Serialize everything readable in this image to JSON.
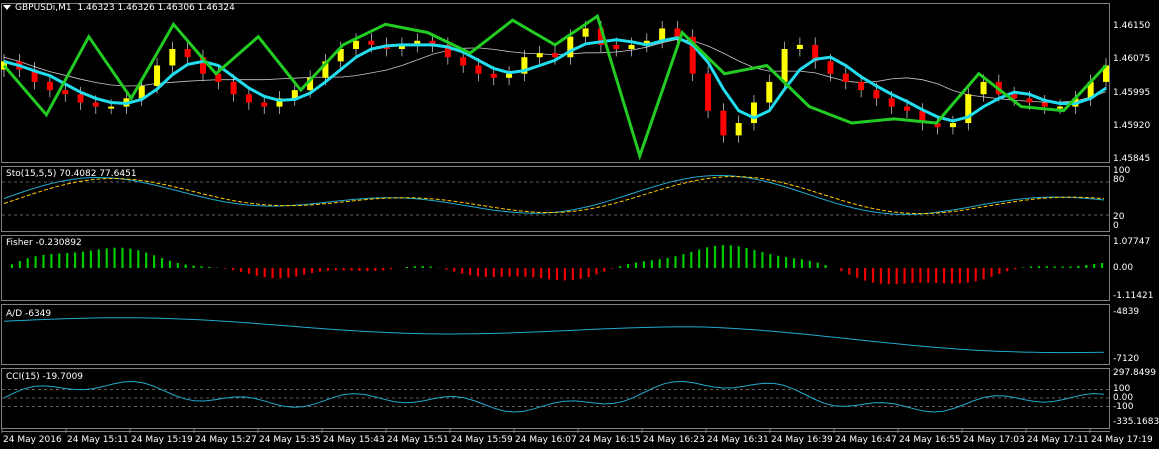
{
  "header": {
    "symbol": "GBPUSDi,M1",
    "ohlc": "1.46323 1.46326 1.46306 1.46324"
  },
  "colors": {
    "background": "#000000",
    "grid": "#808080",
    "bull_candle": "#ffff00",
    "bear_candle": "#ff0000",
    "zigzag": "#22cc22",
    "fast_ma": "#22ddee",
    "slow_ma": "#c8c8c8",
    "stoch_main": "#22aacc",
    "stoch_signal": "#ffcc00",
    "fisher_up": "#00cc00",
    "fisher_down": "#ee0000",
    "ad_line": "#22aacc",
    "cci_line": "#22aacc"
  },
  "chart_data": [
    {
      "type": "candlestick",
      "name": "price",
      "ylim": [
        1.45845,
        1.462
      ],
      "yticks": [
        "1.46150",
        "1.46075",
        "1.45995",
        "1.45920",
        "1.45845"
      ],
      "close": [
        1.4608,
        1.4606,
        1.4603,
        1.4601,
        1.46,
        1.4598,
        1.4597,
        1.4597,
        1.4599,
        1.4602,
        1.4607,
        1.4611,
        1.4609,
        1.4605,
        1.4603,
        1.46,
        1.4598,
        1.4597,
        1.4599,
        1.4601,
        1.4604,
        1.4608,
        1.4611,
        1.4613,
        1.4612,
        1.4611,
        1.4612,
        1.4613,
        1.4612,
        1.4609,
        1.4607,
        1.4605,
        1.4604,
        1.4605,
        1.4609,
        1.461,
        1.4609,
        1.4614,
        1.4616,
        1.4612,
        1.4611,
        1.4612,
        1.4613,
        1.4616,
        1.4614,
        1.4605,
        1.4596,
        1.459,
        1.4593,
        1.4598,
        1.4603,
        1.4611,
        1.4612,
        1.4608,
        1.4605,
        1.4603,
        1.4601,
        1.4599,
        1.4597,
        1.4596,
        1.4593,
        1.4592,
        1.4593,
        1.46,
        1.4603,
        1.46,
        1.4599,
        1.4598,
        1.4597,
        1.4597,
        1.4599,
        1.4603,
        1.4607
      ],
      "bars_up_down": "alternating derived from close",
      "zigzag": [
        1.4607,
        1.4595,
        1.4614,
        1.4599,
        1.4617,
        1.4605,
        1.4614,
        1.4601,
        1.4612,
        1.4617,
        1.4615,
        1.461,
        1.4618,
        1.4612,
        1.4619,
        1.4585,
        1.4615,
        1.4605,
        1.4607,
        1.4597,
        1.4593,
        1.4594,
        1.4593,
        1.4605,
        1.4597,
        1.4596,
        1.4607
      ]
    },
    {
      "type": "line",
      "name": "Sto(15,5,5)",
      "value_text": "70.4082 77.6451",
      "ylim": [
        0,
        100
      ],
      "levels": [
        80,
        20
      ],
      "yticks": [
        "100",
        "80",
        "20",
        "0"
      ]
    },
    {
      "type": "bar",
      "name": "Fisher",
      "value_text": "-0.230892",
      "ylim": [
        -1.11421,
        1.07747
      ],
      "yticks": [
        "1.07747",
        "0.00",
        "-1.11421"
      ]
    },
    {
      "type": "line",
      "name": "A/D",
      "value_text": "-6349",
      "ylim": [
        -7120,
        -4839
      ],
      "yticks": [
        "-4839",
        "-7120"
      ]
    },
    {
      "type": "line",
      "name": "CCI(15)",
      "value_text": "-19.7009",
      "ylim": [
        -335.1683,
        297.8499
      ],
      "levels": [
        100,
        0,
        -100
      ],
      "yticks": [
        "297.8499",
        "100",
        "0.00",
        "-100",
        "-335.1683"
      ]
    }
  ],
  "time_axis": [
    "24 May 2016",
    "24 May 15:11",
    "24 May 15:19",
    "24 May 15:27",
    "24 May 15:35",
    "24 May 15:43",
    "24 May 15:51",
    "24 May 15:59",
    "24 May 16:07",
    "24 May 16:15",
    "24 May 16:23",
    "24 May 16:31",
    "24 May 16:39",
    "24 May 16:47",
    "24 May 16:55",
    "24 May 17:03",
    "24 May 17:11",
    "24 May 17:19"
  ],
  "panels": {
    "sto_label": "Sto(15,5,5) 70.4082 77.6451",
    "fisher_label": "Fisher -0.230892",
    "ad_label": "A/D -6349",
    "cci_label": "CCI(15) -19.7009"
  }
}
